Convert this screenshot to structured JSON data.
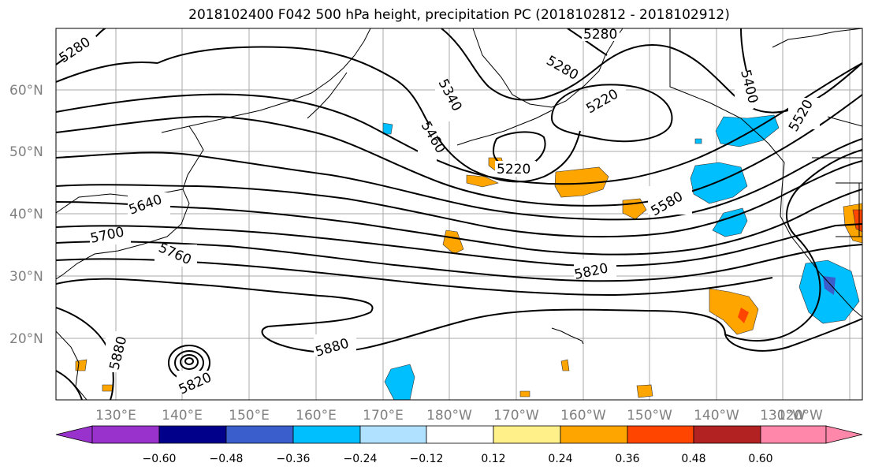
{
  "title": "2018102400 F042 500 hPa height, precipitation PC (2018102812 - 2018102912)",
  "lat_ticks": [
    "60°N",
    "50°N",
    "40°N",
    "30°N",
    "20°N"
  ],
  "lon_ticks": [
    "130°E",
    "140°E",
    "150°E",
    "160°E",
    "170°E",
    "180°W",
    "170°W",
    "160°W",
    "150°W",
    "140°W",
    "130°W",
    "120°W"
  ],
  "contour_labels": [
    "5280",
    "5280",
    "5280",
    "5220",
    "5340",
    "5400",
    "5460",
    "5520",
    "5220",
    "5580",
    "5640",
    "5700",
    "5760",
    "5820",
    "5880",
    "5880",
    "5820"
  ],
  "colorbar": {
    "labels": [
      "−0.60",
      "−0.48",
      "−0.36",
      "−0.24",
      "−0.12",
      "0.12",
      "0.24",
      "0.36",
      "0.48",
      "0.60"
    ],
    "colors": [
      "#9932cc",
      "#00008b",
      "#3a5fcd",
      "#00bfff",
      "#b0e2ff",
      "#ffffff",
      "#fff08a",
      "#ffa500",
      "#ff4500",
      "#b22222",
      "#ff88aa"
    ]
  }
}
